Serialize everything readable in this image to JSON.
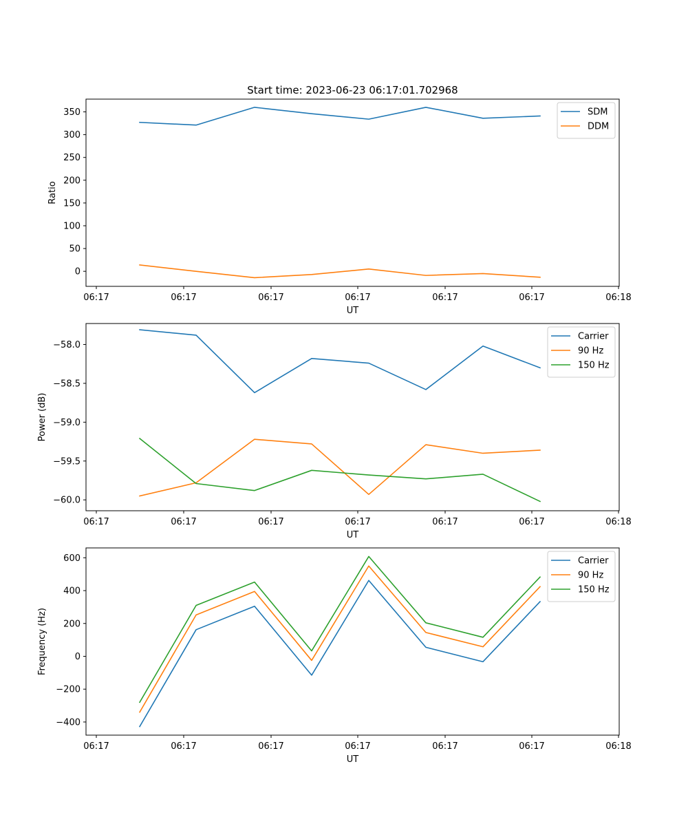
{
  "figure": {
    "title": "Start time: 2023-06-23 06:17:01.702968"
  },
  "colors": {
    "blue": "#1f77b4",
    "orange": "#ff7f0e",
    "green": "#2ca02c"
  },
  "chart_data": [
    {
      "type": "line",
      "title": "Start time: 2023-06-23 06:17:01.702968",
      "xlabel": "UT",
      "ylabel": "Ratio",
      "x_tick_labels": [
        "06:17",
        "06:17",
        "06:17",
        "06:17",
        "06:17",
        "06:17",
        "06:18"
      ],
      "y_ticks": [
        0,
        50,
        100,
        150,
        200,
        250,
        300,
        350
      ],
      "ylim": [
        -33,
        378
      ],
      "grid": false,
      "legend": "top-right",
      "series": [
        {
          "name": "SDM",
          "color": "#1f77b4",
          "values": [
            327,
            321,
            360,
            346,
            334,
            360,
            336,
            341
          ]
        },
        {
          "name": "DDM",
          "color": "#ff7f0e",
          "values": [
            14,
            0,
            -14,
            -7,
            5,
            -9,
            -5,
            -13
          ]
        }
      ]
    },
    {
      "type": "line",
      "title": "",
      "xlabel": "UT",
      "ylabel": "Power (dB)",
      "x_tick_labels": [
        "06:17",
        "06:17",
        "06:17",
        "06:17",
        "06:17",
        "06:17",
        "06:18"
      ],
      "y_ticks": [
        -60.0,
        -59.5,
        -59.0,
        -58.5,
        -58.0
      ],
      "y_tick_labels": [
        "−60.0",
        "−59.5",
        "−59.0",
        "−58.5",
        "−58.0"
      ],
      "ylim": [
        -60.14,
        -57.73
      ],
      "grid": false,
      "legend": "top-right",
      "series": [
        {
          "name": "Carrier",
          "color": "#1f77b4",
          "values": [
            -57.81,
            -57.88,
            -58.62,
            -58.18,
            -58.24,
            -58.58,
            -58.02,
            -58.3
          ]
        },
        {
          "name": "90 Hz",
          "color": "#ff7f0e",
          "values": [
            -59.95,
            -59.78,
            -59.22,
            -59.28,
            -59.93,
            -59.29,
            -59.4,
            -59.36
          ]
        },
        {
          "name": "150 Hz",
          "color": "#2ca02c",
          "values": [
            -59.21,
            -59.79,
            -59.88,
            -59.62,
            -59.68,
            -59.73,
            -59.67,
            -60.02
          ]
        }
      ]
    },
    {
      "type": "line",
      "title": "",
      "xlabel": "UT",
      "ylabel": "Frequency (Hz)",
      "x_tick_labels": [
        "06:17",
        "06:17",
        "06:17",
        "06:17",
        "06:17",
        "06:17",
        "06:18"
      ],
      "y_ticks": [
        -400,
        -200,
        0,
        200,
        400,
        600
      ],
      "y_tick_labels": [
        "−400",
        "−200",
        "0",
        "200",
        "400",
        "600"
      ],
      "ylim": [
        -480,
        660
      ],
      "grid": false,
      "legend": "top-right",
      "series": [
        {
          "name": "Carrier",
          "color": "#1f77b4",
          "values": [
            -428,
            162,
            305,
            -115,
            462,
            55,
            -33,
            333
          ]
        },
        {
          "name": "90 Hz",
          "color": "#ff7f0e",
          "values": [
            -340,
            252,
            395,
            -25,
            550,
            145,
            58,
            424
          ]
        },
        {
          "name": "150 Hz",
          "color": "#2ca02c",
          "values": [
            -280,
            310,
            452,
            33,
            608,
            204,
            116,
            483
          ]
        }
      ]
    }
  ]
}
